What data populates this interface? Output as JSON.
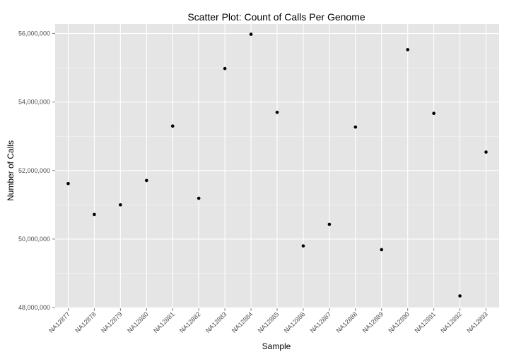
{
  "chart_data": {
    "type": "scatter",
    "title": "Scatter Plot: Count of Calls Per Genome",
    "xlabel": "Sample",
    "ylabel": "Number of Calls",
    "categories": [
      "NA12877",
      "NA12878",
      "NA12879",
      "NA12880",
      "NA12881",
      "NA12882",
      "NA12883",
      "NA12884",
      "NA12885",
      "NA12886",
      "NA12887",
      "NA12888",
      "NA12889",
      "NA12890",
      "NA12891",
      "NA12892",
      "NA12893"
    ],
    "values": [
      51620000,
      50720000,
      51000000,
      51710000,
      53300000,
      51190000,
      54980000,
      55980000,
      53700000,
      49800000,
      50430000,
      53270000,
      49690000,
      55530000,
      53670000,
      48340000,
      52540000
    ],
    "ylim": [
      47980000,
      56280000
    ],
    "yticks": [
      48000000,
      50000000,
      52000000,
      54000000,
      56000000
    ],
    "ytick_labels": [
      "48,000,000",
      "50,000,000",
      "52,000,000",
      "54,000,000",
      "56,000,000"
    ],
    "grid": true,
    "background_color": "#e5e5e5",
    "grid_color": "#ffffff",
    "point_color": "#000000"
  }
}
